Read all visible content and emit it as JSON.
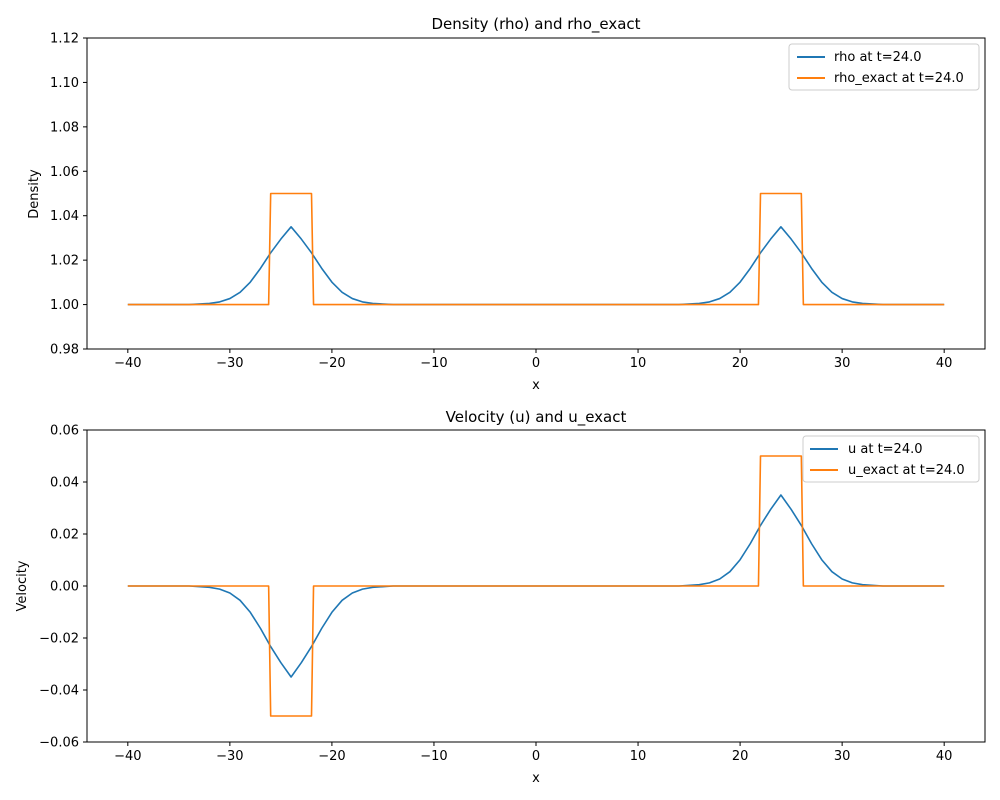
{
  "colors": {
    "series1": "#1f77b4",
    "series2": "#ff7f0e"
  },
  "chart_data": [
    {
      "type": "line",
      "title": "Density (rho) and rho_exact",
      "xlabel": "x",
      "ylabel": "Density",
      "xlim": [
        -44,
        44
      ],
      "ylim": [
        0.98,
        1.12
      ],
      "xticks": [
        -40,
        -30,
        -20,
        -10,
        0,
        10,
        20,
        30,
        40
      ],
      "yticks": [
        0.98,
        1.0,
        1.02,
        1.04,
        1.06,
        1.08,
        1.1,
        1.12
      ],
      "xtick_labels": [
        "−40",
        "−30",
        "−20",
        "−10",
        "0",
        "10",
        "20",
        "30",
        "40"
      ],
      "ytick_labels": [
        "0.98",
        "1.00",
        "1.02",
        "1.04",
        "1.06",
        "1.08",
        "1.10",
        "1.12"
      ],
      "legend": "top-right",
      "grid": false,
      "series": [
        {
          "name": "rho at t=24.0",
          "color": "#1f77b4",
          "x": [
            -40,
            -34,
            -32,
            -31,
            -30,
            -29,
            -28,
            -27,
            -26,
            -25,
            -24,
            -23,
            -22,
            -21,
            -20,
            -19,
            -18,
            -17,
            -16,
            -14,
            0,
            14,
            16,
            17,
            18,
            19,
            20,
            21,
            22,
            23,
            24,
            25,
            26,
            27,
            28,
            29,
            30,
            31,
            32,
            34,
            40
          ],
          "y": [
            1.0,
            1.0,
            1.0005,
            1.0012,
            1.0027,
            1.0055,
            1.0101,
            1.0163,
            1.0233,
            1.0295,
            1.035,
            1.0295,
            1.0233,
            1.0163,
            1.0101,
            1.0055,
            1.0027,
            1.0012,
            1.0005,
            1.0,
            1.0,
            1.0,
            1.0005,
            1.0012,
            1.0027,
            1.0055,
            1.0101,
            1.0163,
            1.0233,
            1.0295,
            1.035,
            1.0295,
            1.0233,
            1.0163,
            1.0101,
            1.0055,
            1.0027,
            1.0012,
            1.0005,
            1.0,
            1.0
          ]
        },
        {
          "name": "rho_exact at t=24.0",
          "color": "#ff7f0e",
          "x": [
            -40,
            -26.2,
            -26,
            -22,
            -21.8,
            21.8,
            22,
            26,
            26.2,
            40
          ],
          "y": [
            1.0,
            1.0,
            1.05,
            1.05,
            1.0,
            1.0,
            1.05,
            1.05,
            1.0,
            1.0
          ]
        }
      ]
    },
    {
      "type": "line",
      "title": "Velocity (u) and u_exact",
      "xlabel": "x",
      "ylabel": "Velocity",
      "xlim": [
        -44,
        44
      ],
      "ylim": [
        -0.06,
        0.06
      ],
      "xticks": [
        -40,
        -30,
        -20,
        -10,
        0,
        10,
        20,
        30,
        40
      ],
      "yticks": [
        -0.06,
        -0.04,
        -0.02,
        0.0,
        0.02,
        0.04,
        0.06
      ],
      "xtick_labels": [
        "−40",
        "−30",
        "−20",
        "−10",
        "0",
        "10",
        "20",
        "30",
        "40"
      ],
      "ytick_labels": [
        "−0.06",
        "−0.04",
        "−0.02",
        "0.00",
        "0.02",
        "0.04",
        "0.06"
      ],
      "legend": "top-right",
      "grid": false,
      "series": [
        {
          "name": "u at t=24.0",
          "color": "#1f77b4",
          "x": [
            -40,
            -34,
            -32,
            -31,
            -30,
            -29,
            -28,
            -27,
            -26,
            -25,
            -24,
            -23,
            -22,
            -21,
            -20,
            -19,
            -18,
            -17,
            -16,
            -14,
            0,
            14,
            16,
            17,
            18,
            19,
            20,
            21,
            22,
            23,
            24,
            25,
            26,
            27,
            28,
            29,
            30,
            31,
            32,
            34,
            40
          ],
          "y": [
            0.0,
            0.0,
            -0.0005,
            -0.0012,
            -0.0027,
            -0.0055,
            -0.0101,
            -0.0163,
            -0.0233,
            -0.0295,
            -0.035,
            -0.0295,
            -0.0233,
            -0.0163,
            -0.0101,
            -0.0055,
            -0.0027,
            -0.0012,
            -0.0005,
            0.0,
            0.0,
            0.0,
            0.0005,
            0.0012,
            0.0027,
            0.0055,
            0.0101,
            0.0163,
            0.0233,
            0.0295,
            0.035,
            0.0295,
            0.0233,
            0.0163,
            0.0101,
            0.0055,
            0.0027,
            0.0012,
            0.0005,
            0.0,
            0.0
          ]
        },
        {
          "name": "u_exact at t=24.0",
          "color": "#ff7f0e",
          "x": [
            -40,
            -26.2,
            -26,
            -22,
            -21.8,
            21.8,
            22,
            26,
            26.2,
            40
          ],
          "y": [
            0.0,
            0.0,
            -0.05,
            -0.05,
            0.0,
            0.0,
            0.05,
            0.05,
            0.0,
            0.0
          ]
        }
      ]
    }
  ]
}
